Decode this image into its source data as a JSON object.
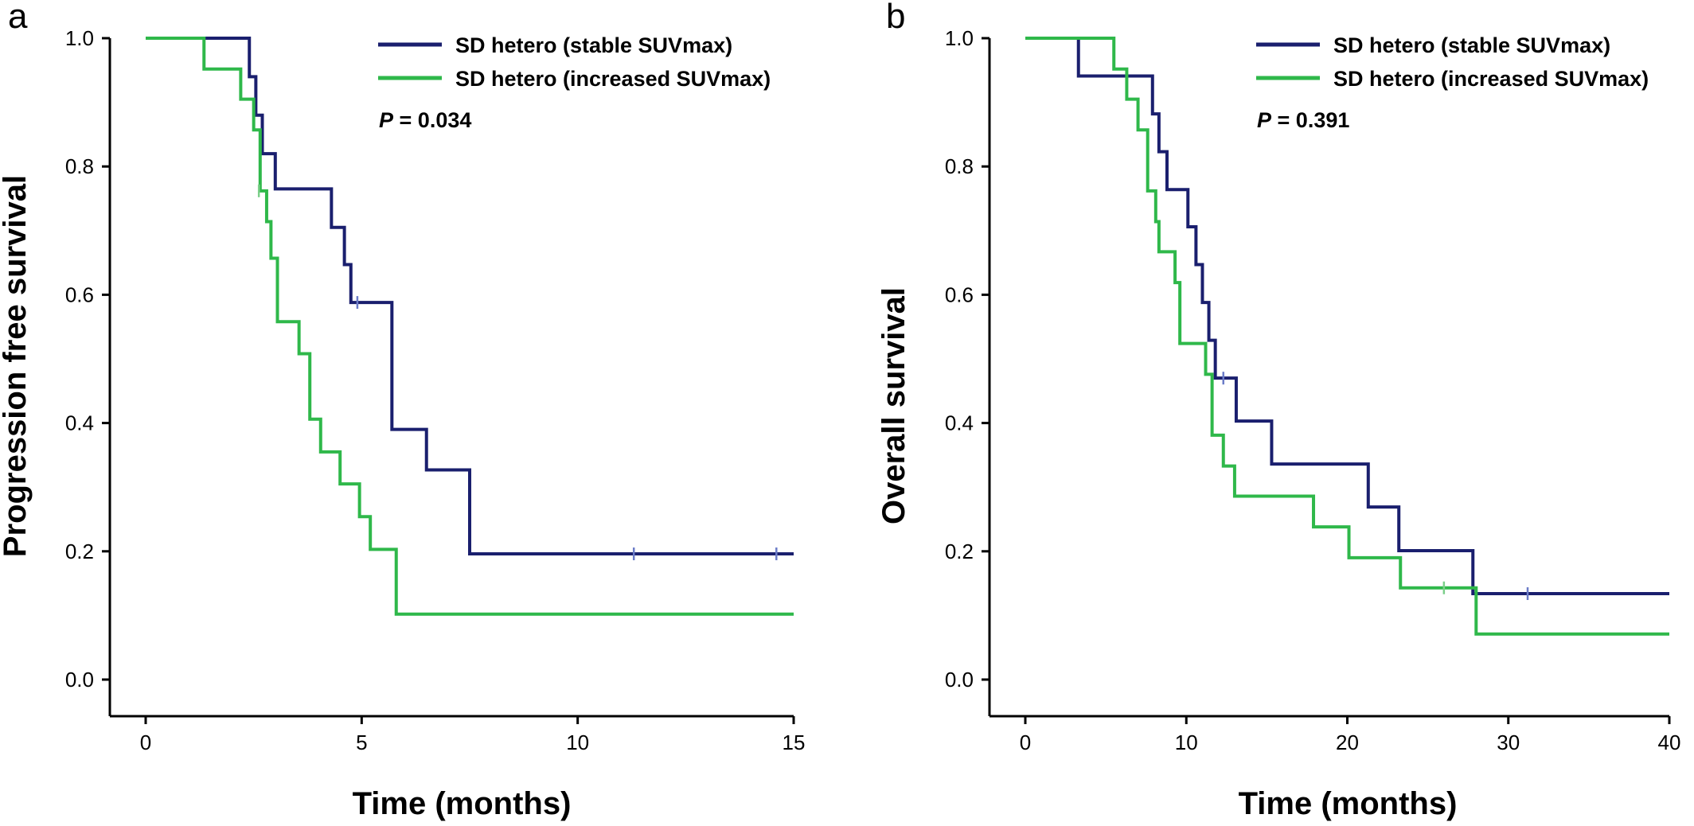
{
  "colors": {
    "stable": "#1a1f6e",
    "increased": "#2fb84a",
    "censor_stable": "#6b7cc8",
    "censor_increased": "#7ccf8a"
  },
  "chart_data": [
    {
      "type": "line",
      "step": true,
      "panel_label": "a",
      "xlabel": "Time (months)",
      "ylabel": "Progression free survival",
      "xlim": [
        0,
        15
      ],
      "ylim": [
        0,
        1
      ],
      "xticks": [
        0,
        5,
        10,
        15
      ],
      "yticks": [
        0.0,
        0.2,
        0.4,
        0.6,
        0.8,
        1.0
      ],
      "xtick_labels": [
        "0",
        "5",
        "10",
        "15"
      ],
      "ytick_labels": [
        "0.0",
        "0.2",
        "0.4",
        "0.6",
        "0.8",
        "1.0"
      ],
      "annotation": {
        "p_label": "P",
        "p_value": "= 0.034"
      },
      "legend_position": "top-right",
      "series": [
        {
          "name": "SD hetero (stable SUVmax)",
          "color_key": "stable",
          "x": [
            0,
            2.4,
            2.55,
            2.7,
            3.0,
            3.2,
            4.3,
            4.6,
            4.75,
            5.7,
            6.5,
            7.5,
            15
          ],
          "y": [
            1.0,
            0.94,
            0.88,
            0.82,
            0.765,
            0.765,
            0.705,
            0.647,
            0.588,
            0.39,
            0.327,
            0.196,
            0.196
          ],
          "censored_x": [
            4.9,
            11.3,
            14.6
          ],
          "censored_y": [
            0.588,
            0.196,
            0.196
          ]
        },
        {
          "name": "SD hetero (increased SUVmax)",
          "color_key": "increased",
          "x": [
            0,
            1.35,
            2.2,
            2.5,
            2.65,
            2.8,
            2.9,
            3.05,
            3.55,
            3.8,
            4.05,
            4.5,
            4.95,
            5.2,
            5.8,
            15
          ],
          "y": [
            1.0,
            0.952,
            0.905,
            0.857,
            0.762,
            0.714,
            0.657,
            0.558,
            0.508,
            0.406,
            0.355,
            0.305,
            0.254,
            0.203,
            0.102,
            0.102
          ],
          "censored_x": [
            2.62
          ],
          "censored_y": [
            0.762
          ]
        }
      ]
    },
    {
      "type": "line",
      "step": true,
      "panel_label": "b",
      "xlabel": "Time (months)",
      "ylabel": "Overall survival",
      "xlim": [
        0,
        40
      ],
      "ylim": [
        0,
        1
      ],
      "xticks": [
        0,
        10,
        20,
        30,
        40
      ],
      "yticks": [
        0.0,
        0.2,
        0.4,
        0.6,
        0.8,
        1.0
      ],
      "xtick_labels": [
        "0",
        "10",
        "20",
        "30",
        "40"
      ],
      "ytick_labels": [
        "0.0",
        "0.2",
        "0.4",
        "0.6",
        "0.8",
        "1.0"
      ],
      "annotation": {
        "p_label": "P",
        "p_value": "= 0.391"
      },
      "legend_position": "top-right",
      "series": [
        {
          "name": "SD hetero (stable SUVmax)",
          "color_key": "stable",
          "x": [
            0,
            3.3,
            7.9,
            8.3,
            8.8,
            10.1,
            10.6,
            11.0,
            11.4,
            11.8,
            12.2,
            13.1,
            15.3,
            21.3,
            23.2,
            27.8,
            40
          ],
          "y": [
            1.0,
            0.941,
            0.882,
            0.823,
            0.764,
            0.706,
            0.647,
            0.588,
            0.529,
            0.47,
            0.47,
            0.403,
            0.336,
            0.269,
            0.201,
            0.134,
            0.134
          ],
          "censored_x": [
            12.3,
            31.2
          ],
          "censored_y": [
            0.47,
            0.134
          ]
        },
        {
          "name": "SD hetero (increased SUVmax)",
          "color_key": "increased",
          "x": [
            0,
            5.5,
            6.3,
            7.0,
            7.6,
            8.1,
            8.3,
            9.3,
            9.6,
            11.2,
            11.6,
            12.3,
            13.0,
            17.9,
            20.1,
            23.3,
            28.0,
            40
          ],
          "y": [
            1.0,
            0.952,
            0.905,
            0.857,
            0.762,
            0.714,
            0.667,
            0.619,
            0.524,
            0.476,
            0.381,
            0.333,
            0.286,
            0.238,
            0.19,
            0.143,
            0.071,
            0.071
          ],
          "censored_x": [
            26.0
          ],
          "censored_y": [
            0.143
          ]
        }
      ]
    }
  ]
}
